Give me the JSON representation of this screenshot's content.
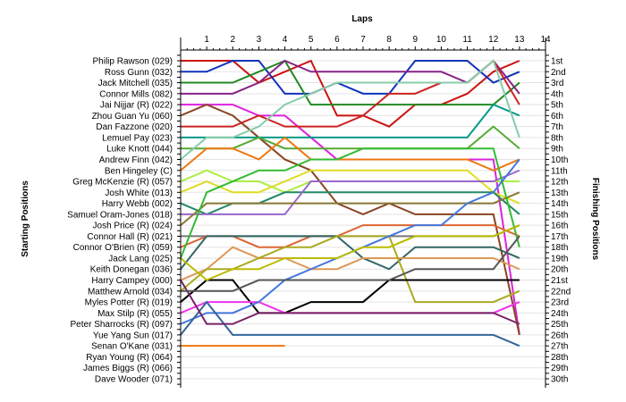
{
  "chart_data": {
    "type": "line",
    "title": "",
    "top_axis_label": "Laps",
    "left_axis_label": "Starting Positions",
    "right_axis_label": "Finishing Positions",
    "laps": [
      1,
      2,
      3,
      4,
      5,
      6,
      7,
      8,
      9,
      10,
      11,
      12,
      13,
      14
    ],
    "x_range": [
      0,
      14
    ],
    "y_range": [
      1,
      30
    ],
    "y_inverted": true,
    "grid": "horizontal",
    "legend": "none",
    "starting_labels": [
      "Philip Rawson (029)",
      "Ross Gunn (032)",
      "Jack Mitchell (035)",
      "Connor Mills (082)",
      "Jai Nijjar (R) (022)",
      "Zhou Guan Yu (060)",
      "Dan Fazzone (020)",
      "Lemuel Pay (023)",
      "Luke Knott (044)",
      "Andrew Finn (042)",
      "Ben Hingeley (C)",
      "Greg McKenzie (R) (057)",
      "Josh White (013)",
      "Harry Webb (002)",
      "Samuel Oram-Jones (018)",
      "Josh Price (R) (024)",
      "Connor Hall (R) (021)",
      "Connor O'Brien (R) (059)",
      "Jack Lang (025)",
      "Keith Donegan (036)",
      "Harry Campey (000)",
      "Matthew Arnold (034)",
      "Myles Potter (R) (019)",
      "Max Stilp  (R) (055)",
      "Peter Sharrocks (R) (097)",
      "Yue Yang Sun (017)",
      "Senan O'Kane (031)",
      "Ryan Young (R) (064)",
      "James Biggs (R) (066)",
      "Dave Wooder (071)"
    ],
    "finishing_labels": [
      "1st",
      "2nd",
      "3rd",
      "4th",
      "5th",
      "6th",
      "7th",
      "8th",
      "9th",
      "10th",
      "11th",
      "12th",
      "13th",
      "14th",
      "15th",
      "16th",
      "17th",
      "18th",
      "19th",
      "20th",
      "21st",
      "22nd",
      "23rd",
      "24th",
      "25th",
      "26th",
      "27th",
      "28th",
      "29th",
      "30th"
    ],
    "series": [
      {
        "color": "#cc1111",
        "positions": [
          1,
          1,
          1,
          3,
          2,
          1,
          6,
          6,
          7,
          5,
          5,
          4,
          2,
          1
        ]
      },
      {
        "color": "#1133bb",
        "positions": [
          2,
          2,
          1,
          1,
          4,
          4,
          3,
          4,
          4,
          1,
          1,
          1,
          3,
          2
        ]
      },
      {
        "color": "#228822",
        "positions": [
          3,
          3,
          3,
          2,
          1,
          5,
          5,
          5,
          5,
          5,
          5,
          5,
          5,
          3
        ]
      },
      {
        "color": "#882288",
        "positions": [
          4,
          4,
          4,
          3,
          1,
          2,
          2,
          2,
          2,
          2,
          2,
          3,
          1,
          4
        ]
      },
      {
        "color": "#dd22dd",
        "positions": [
          5,
          5,
          5,
          6,
          6,
          8,
          10,
          10,
          10,
          10,
          10,
          10,
          10,
          26
        ]
      },
      {
        "color": "#884422",
        "positions": [
          6,
          5,
          6,
          8,
          10,
          11,
          14,
          15,
          14,
          15,
          15,
          15,
          15,
          26
        ]
      },
      {
        "color": "#cc2222",
        "positions": [
          7,
          7,
          7,
          6,
          7,
          7,
          7,
          6,
          4,
          4,
          3,
          3,
          1,
          5
        ]
      },
      {
        "color": "#009988",
        "positions": [
          8,
          8,
          8,
          8,
          8,
          8,
          8,
          8,
          8,
          8,
          8,
          8,
          5,
          6
        ]
      },
      {
        "color": "#55aa33",
        "positions": [
          9,
          9,
          9,
          8,
          9,
          9,
          9,
          9,
          9,
          9,
          9,
          9,
          7,
          9
        ]
      },
      {
        "color": "#88ccaa",
        "positions": [
          10,
          8,
          8,
          7,
          5,
          4,
          3,
          3,
          3,
          3,
          3,
          3,
          1,
          8
        ]
      },
      {
        "color": "#ee7711",
        "positions": [
          11,
          9,
          9,
          10,
          8,
          10,
          10,
          10,
          10,
          10,
          10,
          10,
          11,
          10
        ]
      },
      {
        "color": "#aaee44",
        "positions": [
          12,
          11,
          12,
          12,
          13,
          12,
          12,
          12,
          12,
          12,
          12,
          12,
          12,
          12
        ]
      },
      {
        "color": "#dddd22",
        "positions": [
          13,
          12,
          13,
          13,
          12,
          11,
          11,
          11,
          11,
          11,
          11,
          11,
          13,
          14
        ]
      },
      {
        "color": "#228866",
        "positions": [
          14,
          15,
          14,
          14,
          13,
          13,
          13,
          13,
          13,
          13,
          13,
          13,
          13,
          15
        ]
      },
      {
        "color": "#9966cc",
        "positions": [
          15,
          15,
          15,
          15,
          15,
          12,
          12,
          12,
          12,
          12,
          12,
          12,
          12,
          11
        ]
      },
      {
        "color": "#887733",
        "positions": [
          16,
          14,
          14,
          14,
          14,
          14,
          14,
          14,
          14,
          14,
          14,
          14,
          14,
          13
        ]
      },
      {
        "color": "#777777",
        "positions": [
          17,
          17,
          17,
          17,
          17,
          17,
          17,
          17,
          17,
          17,
          17,
          17,
          17,
          16
        ]
      },
      {
        "color": "#dd6633",
        "positions": [
          18,
          17,
          17,
          18,
          18,
          17,
          17,
          16,
          16,
          16,
          16,
          16,
          16,
          17
        ]
      },
      {
        "color": "#33bb33",
        "positions": [
          19,
          13,
          12,
          11,
          11,
          10,
          10,
          9,
          9,
          9,
          9,
          9,
          9,
          18
        ]
      },
      {
        "color": "#336666",
        "positions": [
          20,
          17,
          17,
          17,
          17,
          17,
          17,
          19,
          20,
          18,
          18,
          18,
          18,
          19
        ]
      },
      {
        "color": "#dd9955",
        "positions": [
          21,
          20,
          18,
          19,
          19,
          20,
          20,
          19,
          19,
          19,
          19,
          19,
          19,
          20
        ]
      },
      {
        "color": "#aaaa22",
        "positions": [
          22,
          20,
          20,
          19,
          18,
          18,
          17,
          17,
          17,
          23,
          23,
          23,
          23,
          22
        ]
      },
      {
        "color": "#000000",
        "positions": [
          23,
          21,
          21,
          24,
          24,
          23,
          23,
          23,
          21,
          21,
          21,
          21,
          21,
          21
        ]
      },
      {
        "color": "#ee33ee",
        "positions": [
          24,
          23,
          23,
          23,
          24,
          24,
          24,
          24,
          24,
          24,
          24,
          24,
          24,
          23
        ]
      },
      {
        "color": "#4477dd",
        "positions": [
          25,
          24,
          24,
          23,
          21,
          20,
          19,
          18,
          17,
          16,
          16,
          14,
          13,
          10
        ]
      },
      {
        "color": "#336699",
        "positions": [
          26,
          23,
          26,
          26,
          26,
          26,
          26,
          26,
          26,
          26,
          26,
          26,
          26,
          27
        ]
      },
      {
        "color": "#ee7711",
        "positions": [
          27,
          27,
          27,
          27,
          27
        ]
      },
      {
        "color": "#772266",
        "positions": [
          21,
          25,
          25,
          24,
          24,
          24,
          24,
          24,
          24,
          24,
          24,
          24,
          24,
          25
        ]
      },
      {
        "color": "#bbbb00",
        "positions": [
          19,
          21,
          20,
          20,
          19,
          19,
          19,
          18,
          18,
          17,
          17,
          17,
          17,
          16
        ]
      },
      {
        "color": "#555555",
        "positions": [
          22,
          22,
          22,
          21,
          21,
          21,
          21,
          21,
          21,
          20,
          20,
          20,
          20,
          17
        ]
      }
    ]
  }
}
